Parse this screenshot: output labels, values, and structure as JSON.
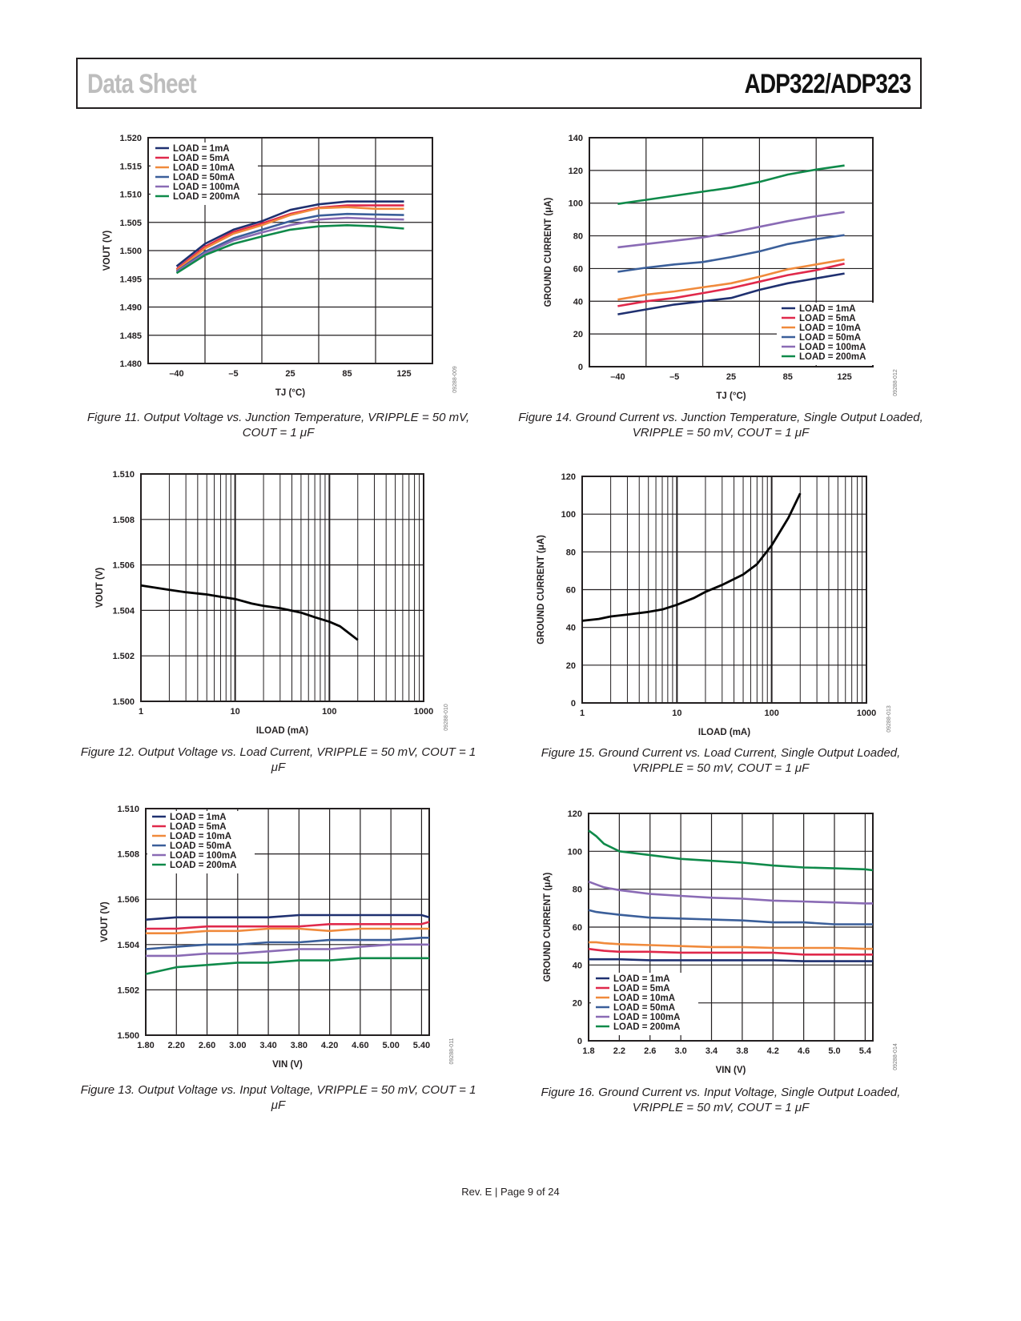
{
  "header": {
    "left": "Data Sheet",
    "right": "ADP322/ADP323"
  },
  "footer": "Rev. E | Page 9 of 24",
  "captions": {
    "fig11": "Figure 11. Output Voltage vs. Junction Temperature, VRIPPLE = 50 mV, COUT = 1 μF",
    "fig14_line1": "Figure 14. Ground Current vs. Junction Temperature, Single Output Loaded,",
    "fig14_line2": "VRIPPLE = 50 mV, COUT = 1 μF",
    "fig12": "Figure 12. Output Voltage vs. Load Current, VRIPPLE = 50 mV, COUT = 1 μF",
    "fig15_line1": "Figure 15. Ground Current vs. Load Current, Single Output Loaded,",
    "fig15_line2": "VRIPPLE = 50 mV, COUT = 1 μF",
    "fig13": "Figure 13. Output Voltage vs. Input Voltage, VRIPPLE = 50 mV, COUT = 1 μF",
    "fig16_line1": "Figure 16. Ground Current vs. Input Voltage, Single Output Loaded,",
    "fig16_line2": "VRIPPLE = 50 mV, COUT = 1 μF"
  },
  "colors": {
    "1mA": "#1f3070",
    "5mA": "#e0294b",
    "10mA": "#f08a3c",
    "50mA": "#3b5f9a",
    "100mA": "#8a6bb5",
    "200mA": "#0f8a4a",
    "single": "#000000"
  },
  "chart_data": [
    {
      "id": "fig11",
      "type": "line",
      "xlabel": "TJ (°C)",
      "ylabel": "VOUT (V)",
      "xticks": [
        "–40",
        "–5",
        "25",
        "85",
        "125"
      ],
      "xlim": [
        0,
        4
      ],
      "ylim": [
        1.48,
        1.52
      ],
      "yticks": [
        "1.480",
        "1.485",
        "1.490",
        "1.495",
        "1.500",
        "1.505",
        "1.510",
        "1.515",
        "1.520"
      ],
      "code": "09288-009",
      "legend": "top-left",
      "x": [
        0,
        0.5,
        1,
        1.5,
        2,
        2.5,
        3,
        3.5,
        4
      ],
      "series": [
        {
          "name": "LOAD = 1mA",
          "key": "1mA",
          "values": [
            1.4972,
            1.5012,
            1.5037,
            1.5052,
            1.5072,
            1.5082,
            1.5087,
            1.5087,
            1.5087
          ]
        },
        {
          "name": "LOAD = 5mA",
          "key": "5mA",
          "values": [
            1.4967,
            1.5007,
            1.5033,
            1.5048,
            1.5065,
            1.5076,
            1.508,
            1.508,
            1.508
          ]
        },
        {
          "name": "LOAD = 10mA",
          "key": "10mA",
          "values": [
            1.4965,
            1.5004,
            1.503,
            1.5045,
            1.5063,
            1.5075,
            1.5077,
            1.5074,
            1.5074
          ]
        },
        {
          "name": "LOAD = 50mA",
          "key": "50mA",
          "values": [
            1.4963,
            1.4998,
            1.5022,
            1.5037,
            1.5052,
            1.5062,
            1.5065,
            1.5064,
            1.5063
          ]
        },
        {
          "name": "LOAD = 100mA",
          "key": "100mA",
          "values": [
            1.4962,
            1.4995,
            1.5018,
            1.5032,
            1.5045,
            1.5055,
            1.5058,
            1.5056,
            1.5055
          ]
        },
        {
          "name": "LOAD = 200mA",
          "key": "200mA",
          "values": [
            1.496,
            1.4992,
            1.5012,
            1.5025,
            1.5037,
            1.5043,
            1.5045,
            1.5043,
            1.5039
          ]
        }
      ]
    },
    {
      "id": "fig14",
      "type": "line",
      "xlabel": "TJ (°C)",
      "ylabel": "GROUND CURRENT (μA)",
      "xticks": [
        "–40",
        "–5",
        "25",
        "85",
        "125"
      ],
      "xlim": [
        0,
        4
      ],
      "ylim": [
        0,
        140
      ],
      "yticks": [
        "0",
        "20",
        "40",
        "60",
        "80",
        "100",
        "120",
        "140"
      ],
      "code": "09288-012",
      "legend": "bottom-right",
      "x": [
        0,
        0.5,
        1,
        1.5,
        2,
        2.5,
        3,
        3.5,
        4
      ],
      "series": [
        {
          "name": "LOAD = 1mA",
          "key": "1mA",
          "values": [
            32,
            35,
            38,
            40,
            42,
            47,
            51,
            54,
            57
          ]
        },
        {
          "name": "LOAD = 5mA",
          "key": "5mA",
          "values": [
            37,
            40,
            42,
            45,
            48,
            52,
            56,
            59,
            63
          ]
        },
        {
          "name": "LOAD = 10mA",
          "key": "10mA",
          "values": [
            41,
            44,
            46,
            48.5,
            51,
            55,
            59.5,
            62.5,
            65.5
          ]
        },
        {
          "name": "LOAD = 50mA",
          "key": "50mA",
          "values": [
            58,
            60.5,
            62.5,
            64,
            67,
            70.5,
            75,
            78,
            80.5
          ]
        },
        {
          "name": "LOAD = 100mA",
          "key": "100mA",
          "values": [
            73,
            75,
            77,
            79,
            82,
            85.5,
            89,
            92,
            94.5
          ]
        },
        {
          "name": "LOAD = 200mA",
          "key": "200mA",
          "values": [
            99.5,
            102,
            104.5,
            107,
            109.5,
            113,
            117.5,
            120.5,
            123
          ]
        }
      ]
    },
    {
      "id": "fig12",
      "type": "line",
      "xscale": "log",
      "xlabel": "ILOAD (mA)",
      "ylabel": "VOUT (V)",
      "xticks": [
        "1",
        "10",
        "100",
        "1000"
      ],
      "xlim": [
        1,
        1000
      ],
      "ylim": [
        1.5,
        1.51
      ],
      "yticks": [
        "1.500",
        "1.502",
        "1.504",
        "1.506",
        "1.508",
        "1.510"
      ],
      "code": "09288-010",
      "x": [
        1,
        2,
        3,
        5,
        7,
        10,
        15,
        20,
        30,
        50,
        70,
        100,
        130,
        150,
        200
      ],
      "series": [
        {
          "name": "VOUT",
          "key": "single",
          "values": [
            1.5051,
            1.5049,
            1.5048,
            1.5047,
            1.5046,
            1.5045,
            1.5043,
            1.5042,
            1.5041,
            1.5039,
            1.5037,
            1.5035,
            1.5033,
            1.5031,
            1.5027
          ]
        }
      ]
    },
    {
      "id": "fig15",
      "type": "line",
      "xscale": "log",
      "xlabel": "ILOAD (mA)",
      "ylabel": "GROUND CURRENT (μA)",
      "xticks": [
        "1",
        "10",
        "100",
        "1000"
      ],
      "xlim": [
        1,
        1000
      ],
      "ylim": [
        0,
        120
      ],
      "yticks": [
        "0",
        "20",
        "40",
        "60",
        "80",
        "100",
        "120"
      ],
      "code": "09288-013",
      "x": [
        1,
        1.5,
        2,
        3,
        5,
        7,
        10,
        15,
        20,
        30,
        50,
        70,
        100,
        150,
        200
      ],
      "series": [
        {
          "name": "Ground current",
          "key": "single",
          "values": [
            43.5,
            44.5,
            45.8,
            46.8,
            48.2,
            49.5,
            52,
            55.5,
            58.8,
            62.5,
            68,
            73.5,
            83.5,
            98,
            111
          ]
        }
      ]
    },
    {
      "id": "fig13",
      "type": "line",
      "xlabel": "VIN (V)",
      "ylabel": "VOUT (V)",
      "xticks": [
        "1.80",
        "2.20",
        "2.60",
        "3.00",
        "3.40",
        "3.80",
        "4.20",
        "4.60",
        "5.00",
        "5.40"
      ],
      "xlim": [
        1.8,
        5.5
      ],
      "ylim": [
        1.5,
        1.51
      ],
      "yticks": [
        "1.500",
        "1.502",
        "1.504",
        "1.506",
        "1.508",
        "1.510"
      ],
      "code": "09288-011",
      "legend": "top-left",
      "x": [
        1.8,
        2.2,
        2.6,
        3.0,
        3.4,
        3.8,
        4.2,
        4.6,
        5.0,
        5.4,
        5.5
      ],
      "series": [
        {
          "name": "LOAD = 1mA",
          "key": "1mA",
          "values": [
            1.5051,
            1.5052,
            1.5052,
            1.5052,
            1.5052,
            1.5053,
            1.5053,
            1.5053,
            1.5053,
            1.5053,
            1.5052
          ]
        },
        {
          "name": "LOAD = 5mA",
          "key": "5mA",
          "values": [
            1.5047,
            1.5047,
            1.5048,
            1.5048,
            1.5048,
            1.5048,
            1.5049,
            1.5049,
            1.5049,
            1.5049,
            1.505
          ]
        },
        {
          "name": "LOAD = 10mA",
          "key": "10mA",
          "values": [
            1.5045,
            1.5045,
            1.5046,
            1.5046,
            1.5047,
            1.5047,
            1.5046,
            1.5047,
            1.5047,
            1.5047,
            1.5047
          ]
        },
        {
          "name": "LOAD = 50mA",
          "key": "50mA",
          "values": [
            1.5038,
            1.5039,
            1.504,
            1.504,
            1.5041,
            1.5041,
            1.5042,
            1.5042,
            1.5042,
            1.5043,
            1.5043
          ]
        },
        {
          "name": "LOAD = 100mA",
          "key": "100mA",
          "values": [
            1.5035,
            1.5035,
            1.5036,
            1.5036,
            1.5037,
            1.5038,
            1.5038,
            1.5039,
            1.504,
            1.504,
            1.504
          ]
        },
        {
          "name": "LOAD = 200mA",
          "key": "200mA",
          "values": [
            1.5027,
            1.503,
            1.5031,
            1.5032,
            1.5032,
            1.5033,
            1.5033,
            1.5034,
            1.5034,
            1.5034,
            1.5034
          ]
        }
      ]
    },
    {
      "id": "fig16",
      "type": "line",
      "xlabel": "VIN (V)",
      "ylabel": "GROUND CURRENT (μA)",
      "xticks": [
        "1.8",
        "2.2",
        "2.6",
        "3.0",
        "3.4",
        "3.8",
        "4.2",
        "4.6",
        "5.0",
        "5.4"
      ],
      "xlim": [
        1.8,
        5.5
      ],
      "ylim": [
        0,
        120
      ],
      "yticks": [
        "0",
        "20",
        "40",
        "60",
        "80",
        "100",
        "120"
      ],
      "code": "09288-014",
      "legend": "bottom-left",
      "x": [
        1.8,
        1.9,
        2.0,
        2.2,
        2.6,
        3.0,
        3.4,
        3.8,
        4.2,
        4.6,
        5.0,
        5.4,
        5.5
      ],
      "series": [
        {
          "name": "LOAD = 1mA",
          "key": "1mA",
          "values": [
            43,
            43,
            43,
            43,
            42.5,
            42.5,
            42.5,
            42.5,
            42.5,
            42,
            42,
            42,
            42
          ]
        },
        {
          "name": "LOAD = 5mA",
          "key": "5mA",
          "values": [
            48.5,
            48,
            47.5,
            47,
            47,
            46.5,
            46.5,
            46.5,
            46.5,
            45.5,
            45.5,
            45.5,
            45.5
          ]
        },
        {
          "name": "LOAD = 10mA",
          "key": "10mA",
          "values": [
            52,
            52,
            51.5,
            51,
            50.5,
            50,
            49.5,
            49.5,
            49,
            49,
            49,
            48.5,
            48.5
          ]
        },
        {
          "name": "LOAD = 50mA",
          "key": "50mA",
          "values": [
            69,
            68,
            67.5,
            66.5,
            65,
            64.5,
            64,
            63.5,
            62.5,
            62.5,
            61.5,
            61.5,
            61.5
          ]
        },
        {
          "name": "LOAD = 100mA",
          "key": "100mA",
          "values": [
            84,
            82.5,
            81,
            79.5,
            77.5,
            76.5,
            75.5,
            75,
            74,
            73.5,
            73,
            72.5,
            72.5
          ]
        },
        {
          "name": "LOAD = 200mA",
          "key": "200mA",
          "values": [
            111,
            108,
            104,
            100,
            98,
            96,
            95,
            94,
            92.5,
            91.5,
            91,
            90.5,
            90
          ]
        }
      ]
    }
  ]
}
